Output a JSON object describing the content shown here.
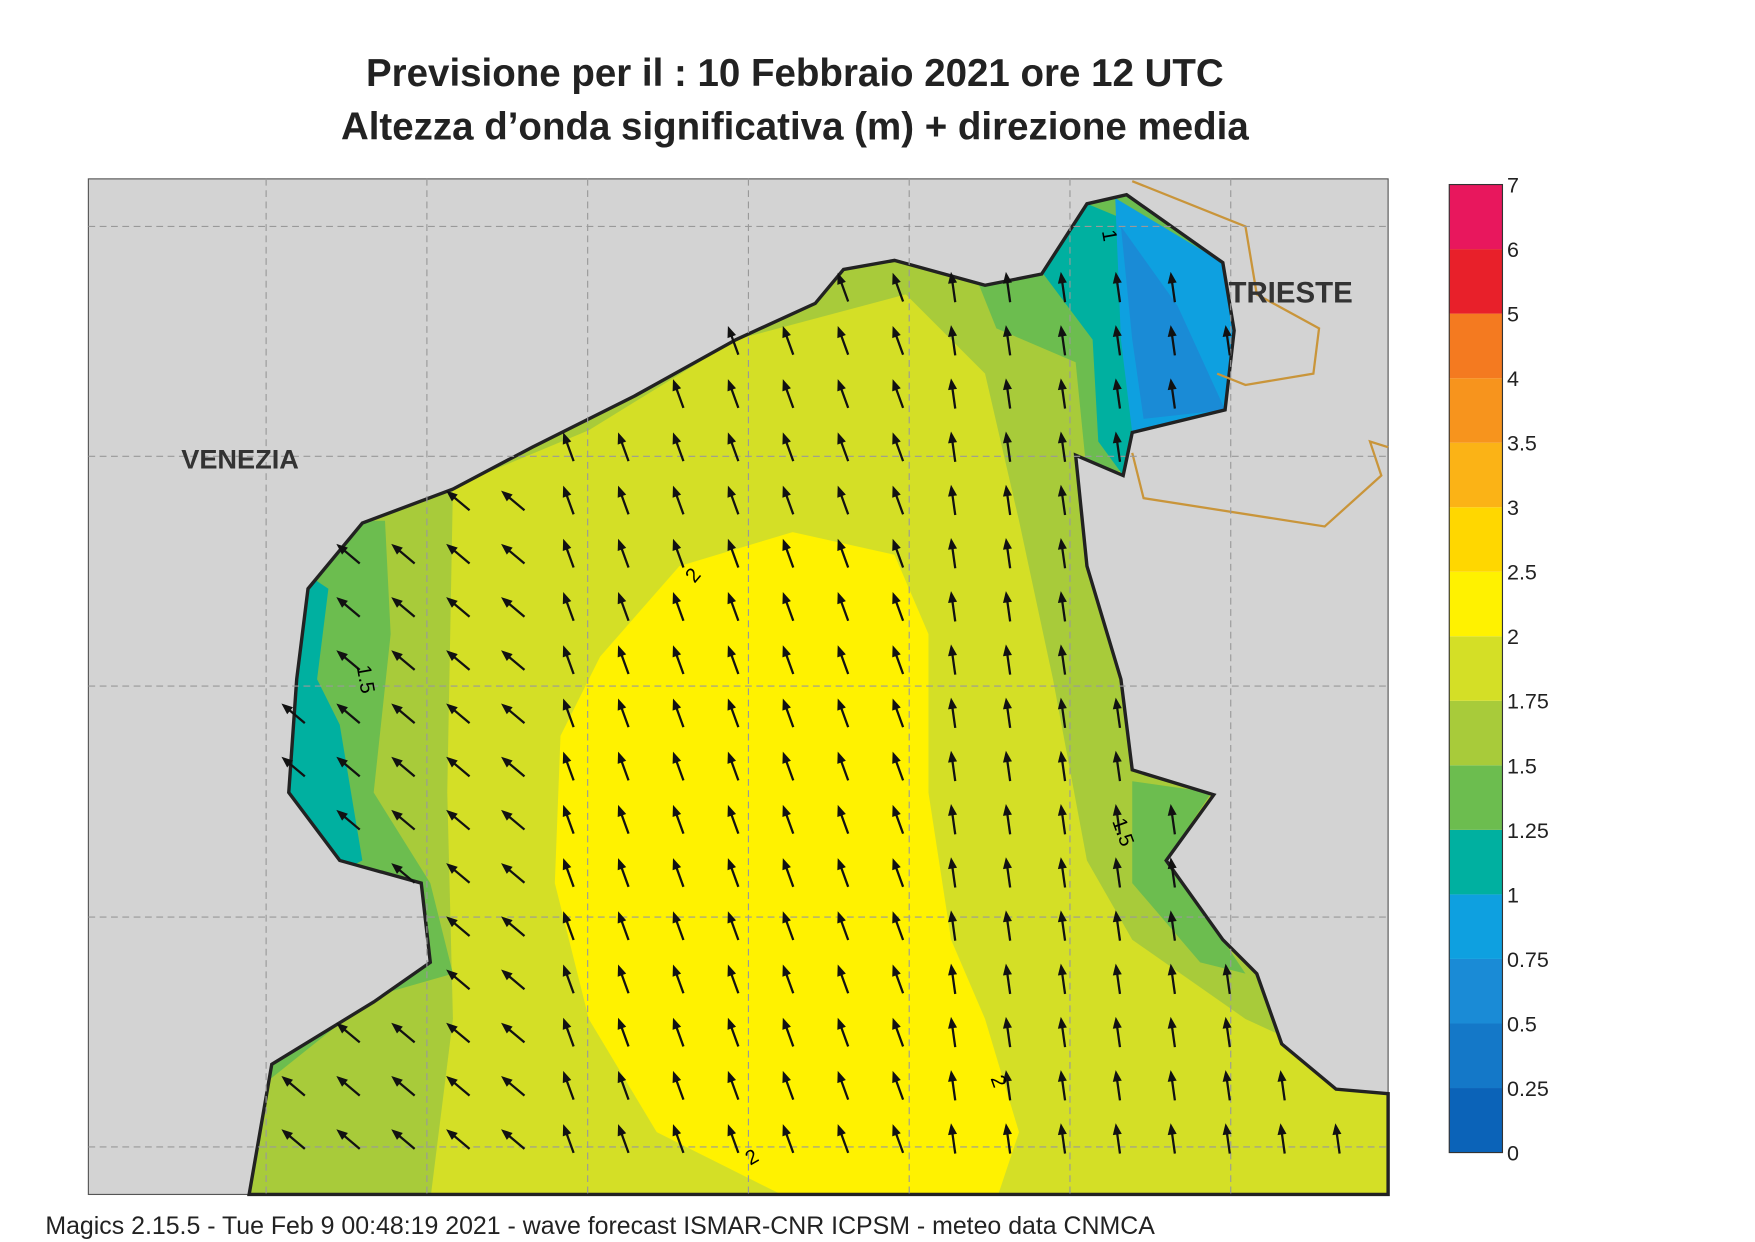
{
  "header": {
    "title": "Previsione per il  :  10  Febbraio 2021   ore 12 UTC",
    "subtitle": "Altezza d’onda significativa (m) + direzione media"
  },
  "places": [
    {
      "label": "VENEZIA"
    },
    {
      "label": "TRIESTE"
    }
  ],
  "contour_labels": [
    "1",
    "2",
    "1.5",
    "1.5",
    "2",
    "2"
  ],
  "colorbar": {
    "ticks": [
      0,
      0.25,
      0.5,
      0.75,
      1,
      1.25,
      1.5,
      1.75,
      2,
      2.5,
      3,
      3.5,
      4,
      5,
      6,
      7
    ],
    "colors": [
      "#0b63b8",
      "#1478c8",
      "#1a8bd6",
      "#0ea0e0",
      "#00b0a0",
      "#6cbd4f",
      "#a8cb3a",
      "#d4df26",
      "#fff200",
      "#ffd700",
      "#fbb316",
      "#f7941d",
      "#f47a20",
      "#e8202a",
      "#e8175d"
    ]
  },
  "footer": "Magics 2.15.5 - Tue Feb  9 00:48:19 2021 - wave forecast  ISMAR-CNR  ICPSM - meteo data   CNMCA"
}
